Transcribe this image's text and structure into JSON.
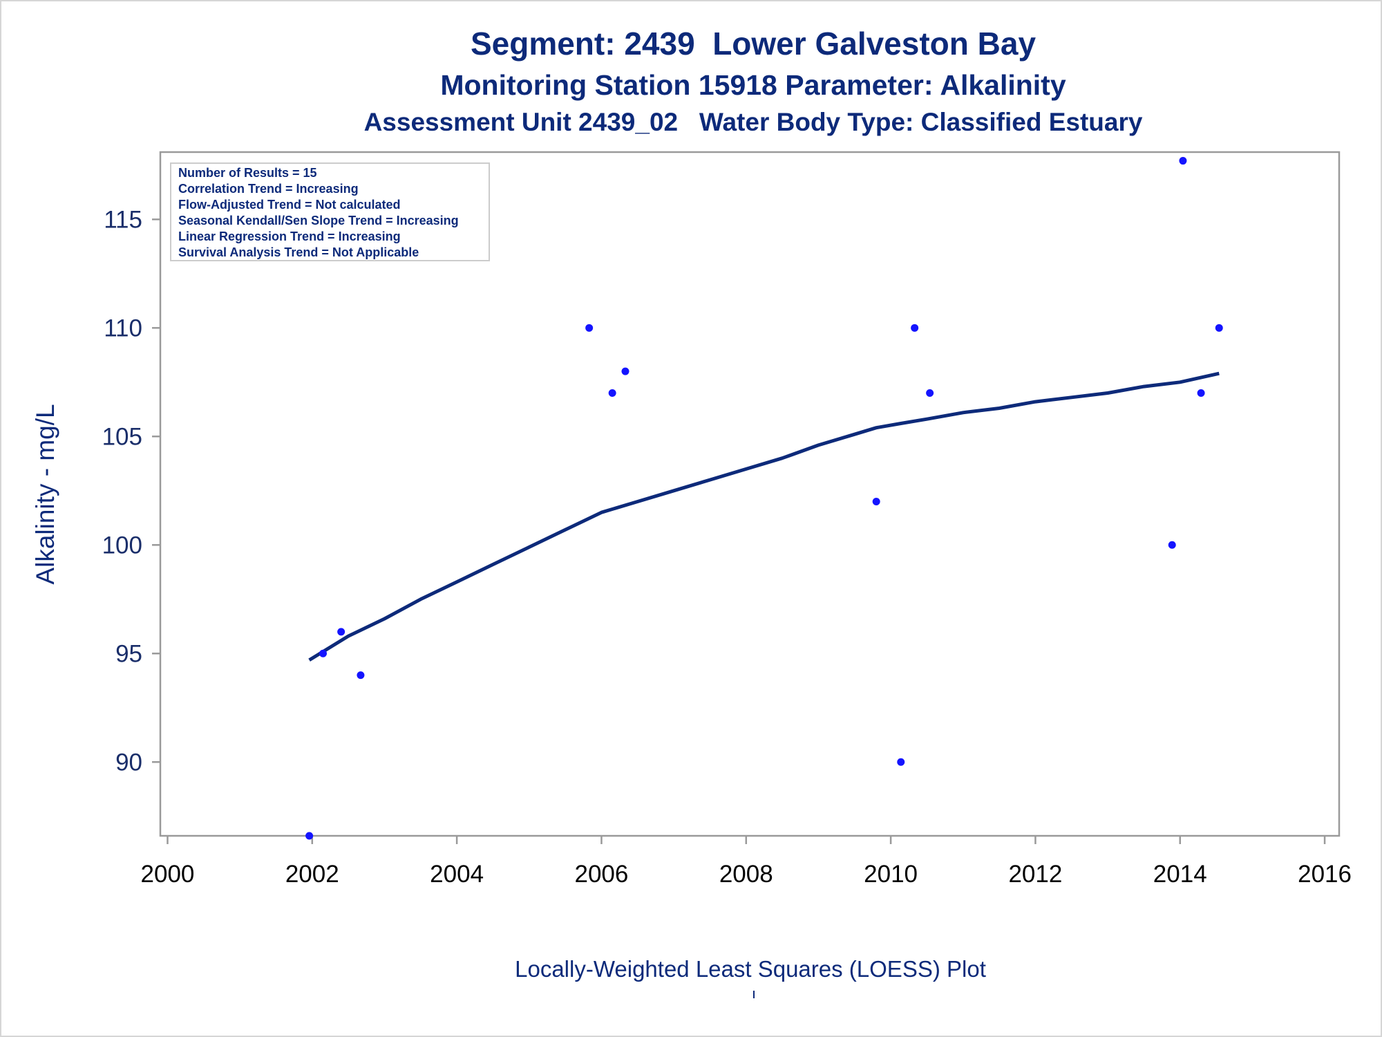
{
  "title": "Segment: 2439  Lower Galveston Bay",
  "subtitle": "Monitoring Station 15918 Parameter: Alkalinity",
  "subtitle2": "Assessment Unit 2439_02   Water Body Type: Classified Estuary",
  "footer": "Locally-Weighted Least Squares (LOESS) Plot",
  "stats": [
    "Number of Results = 15",
    "Correlation Trend = Increasing",
    "Flow-Adjusted Trend = Not calculated",
    "Seasonal Kendall/Sen Slope Trend = Increasing",
    "Linear Regression Trend = Increasing",
    "Survival Analysis Trend = Not Applicable"
  ],
  "colors": {
    "points": "#1414ff",
    "line": "#0d2a7a",
    "text": "#0d2a7a",
    "axis": "#9a9a9a"
  },
  "chart_data": {
    "type": "scatter",
    "xlabel": "",
    "ylabel": "Alkalinity - mg/L",
    "xlim": [
      1999.9,
      2016.2
    ],
    "ylim": [
      86.6,
      118.1
    ],
    "x_ticks": [
      2000,
      2002,
      2004,
      2006,
      2008,
      2010,
      2012,
      2014,
      2016
    ],
    "y_ticks": [
      90,
      95,
      100,
      105,
      110,
      115
    ],
    "grid": false,
    "points": [
      {
        "x": 2001.96,
        "y": 86.6
      },
      {
        "x": 2002.15,
        "y": 95
      },
      {
        "x": 2002.4,
        "y": 96
      },
      {
        "x": 2002.67,
        "y": 94
      },
      {
        "x": 2005.83,
        "y": 110
      },
      {
        "x": 2006.15,
        "y": 107
      },
      {
        "x": 2006.33,
        "y": 108
      },
      {
        "x": 2009.8,
        "y": 102
      },
      {
        "x": 2010.14,
        "y": 90
      },
      {
        "x": 2010.33,
        "y": 110
      },
      {
        "x": 2010.54,
        "y": 107
      },
      {
        "x": 2013.89,
        "y": 100
      },
      {
        "x": 2014.04,
        "y": 117.7
      },
      {
        "x": 2014.29,
        "y": 107
      },
      {
        "x": 2014.54,
        "y": 110
      }
    ],
    "trend": {
      "name": "LOESS",
      "x": [
        2001.96,
        2002.5,
        2003,
        2003.5,
        2004,
        2004.5,
        2005,
        2005.5,
        2006,
        2006.5,
        2007,
        2007.5,
        2008,
        2008.5,
        2009,
        2009.5,
        2009.8,
        2010.14,
        2010.5,
        2011,
        2011.5,
        2012,
        2012.5,
        2013,
        2013.5,
        2014,
        2014.54
      ],
      "y": [
        94.7,
        95.8,
        96.6,
        97.5,
        98.3,
        99.1,
        99.9,
        100.7,
        101.5,
        102.0,
        102.5,
        103.0,
        103.5,
        104.0,
        104.6,
        105.1,
        105.4,
        105.6,
        105.8,
        106.1,
        106.3,
        106.6,
        106.8,
        107.0,
        107.3,
        107.5,
        107.9
      ]
    }
  }
}
